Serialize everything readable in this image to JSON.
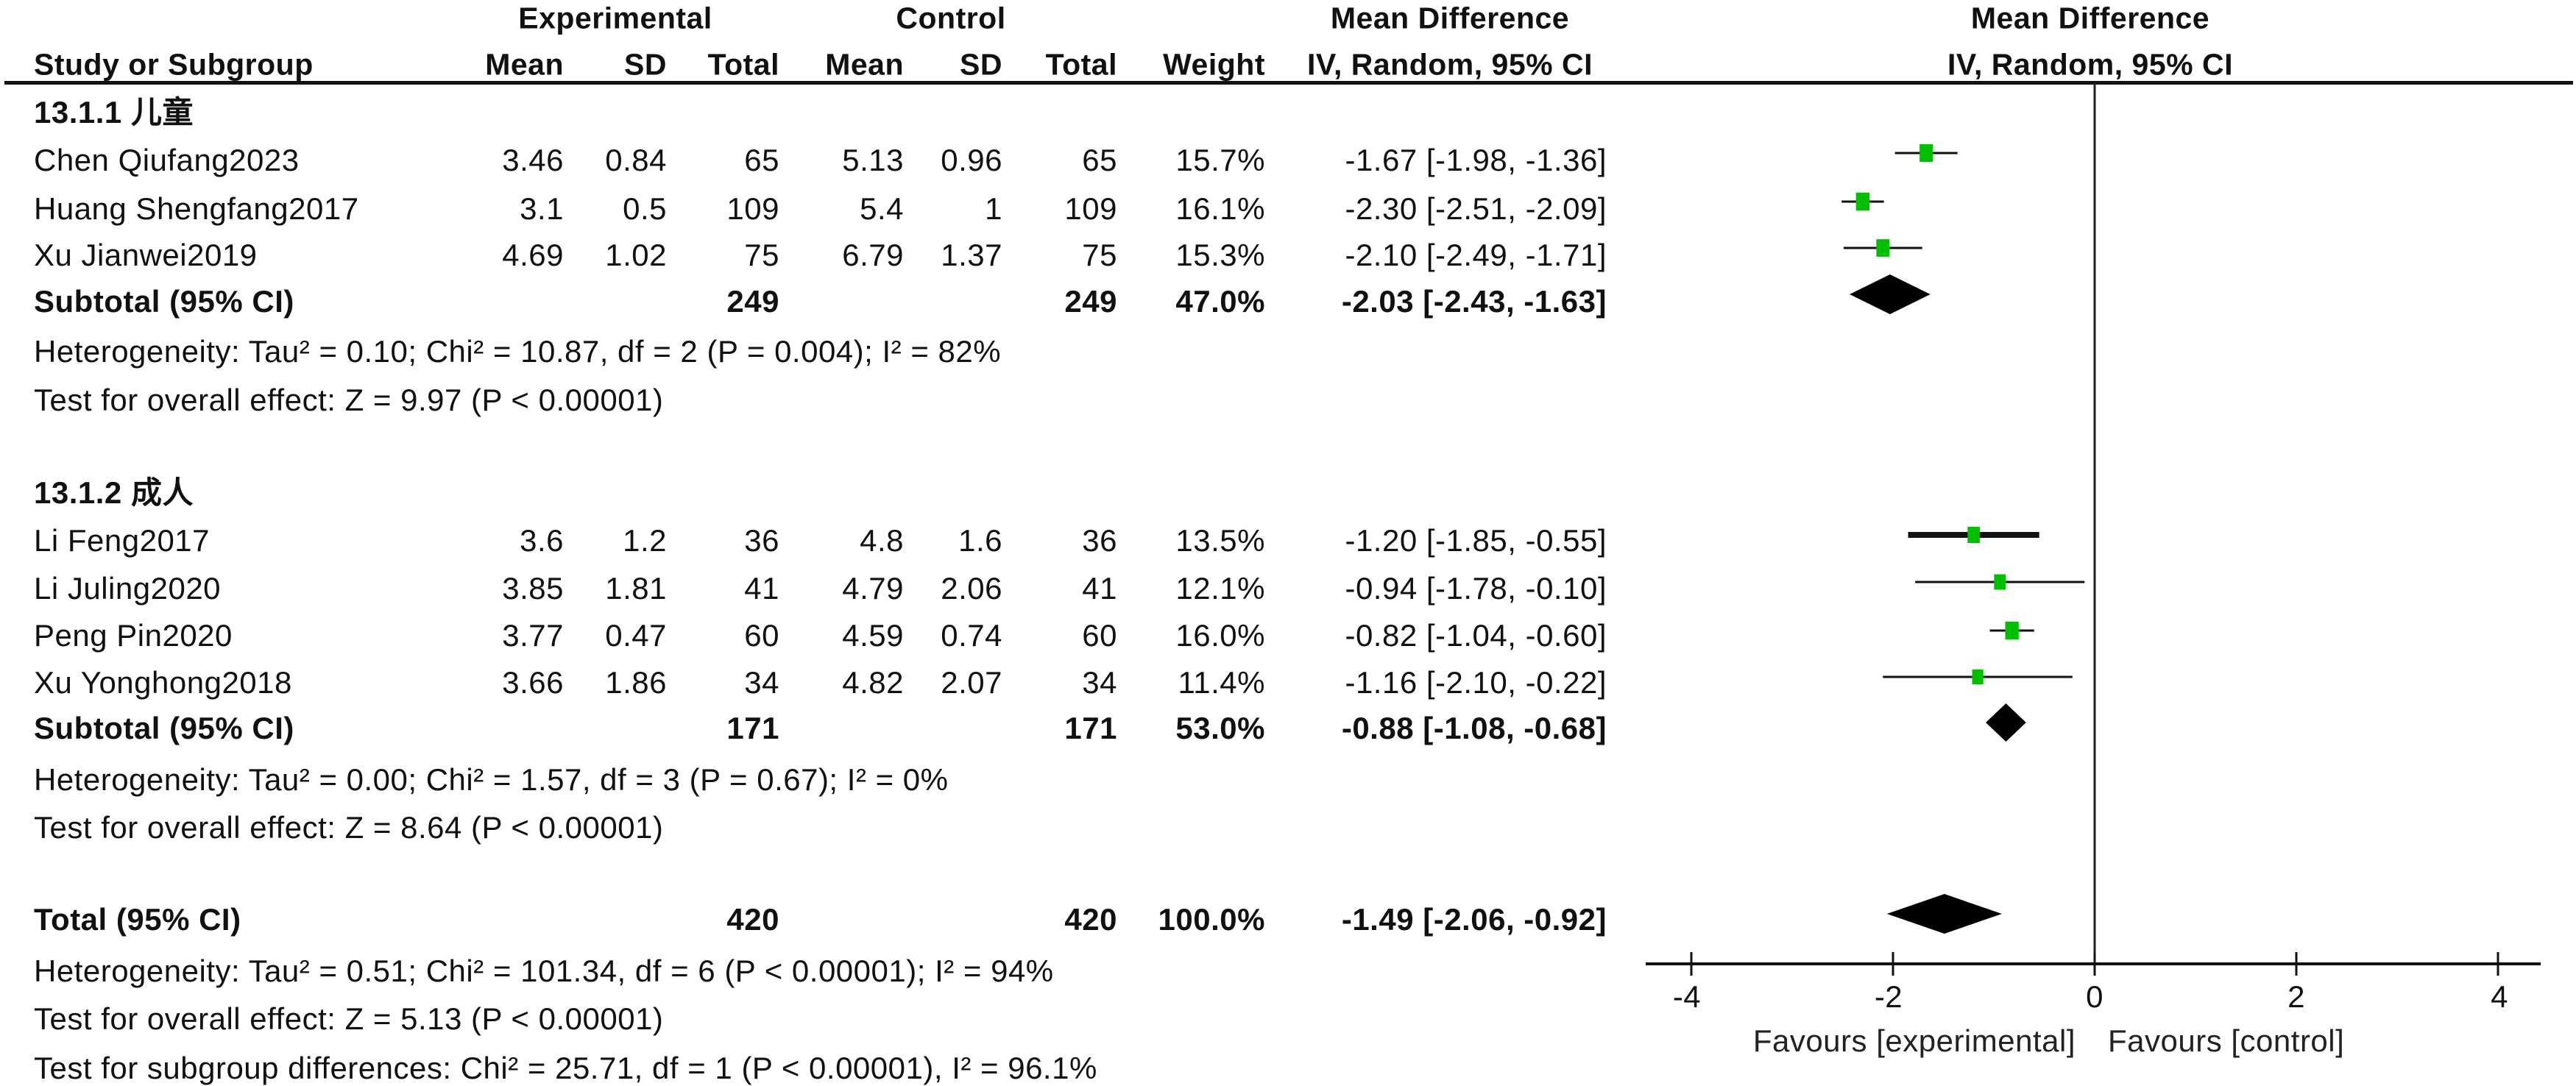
{
  "header": {
    "study_col": "Study or Subgroup",
    "experimental_group": "Experimental",
    "control_group": "Control",
    "mean": "Mean",
    "sd": "SD",
    "total": "Total",
    "weight": "Weight",
    "md_title": "Mean Difference",
    "md_method": "IV, Random, 95% CI",
    "plot_title": "Mean Difference",
    "plot_method": "IV, Random, 95% CI"
  },
  "subgroups": [
    {
      "label": "13.1.1 儿童",
      "studies": [
        {
          "name": "Chen Qiufang2023",
          "e_mean": "3.46",
          "e_sd": "0.84",
          "e_total": "65",
          "c_mean": "5.13",
          "c_sd": "0.96",
          "c_total": "65",
          "weight": "15.7%",
          "ci": "-1.67 [-1.98, -1.36]"
        },
        {
          "name": "Huang Shengfang2017",
          "e_mean": "3.1",
          "e_sd": "0.5",
          "e_total": "109",
          "c_mean": "5.4",
          "c_sd": "1",
          "c_total": "109",
          "weight": "16.1%",
          "ci": "-2.30 [-2.51, -2.09]"
        },
        {
          "name": "Xu Jianwei2019",
          "e_mean": "4.69",
          "e_sd": "1.02",
          "e_total": "75",
          "c_mean": "6.79",
          "c_sd": "1.37",
          "c_total": "75",
          "weight": "15.3%",
          "ci": "-2.10 [-2.49, -1.71]"
        }
      ],
      "subtotal": {
        "label": "Subtotal (95% CI)",
        "e_total": "249",
        "c_total": "249",
        "weight": "47.0%",
        "ci": "-2.03 [-2.43, -1.63]"
      },
      "heterogeneity": "Heterogeneity: Tau² = 0.10; Chi² = 10.87, df = 2 (P = 0.004); I² = 82%",
      "overall_effect": "Test for overall effect: Z = 9.97 (P < 0.00001)"
    },
    {
      "label": "13.1.2 成人",
      "studies": [
        {
          "name": "Li Feng2017",
          "e_mean": "3.6",
          "e_sd": "1.2",
          "e_total": "36",
          "c_mean": "4.8",
          "c_sd": "1.6",
          "c_total": "36",
          "weight": "13.5%",
          "ci": "-1.20 [-1.85, -0.55]"
        },
        {
          "name": "Li Juling2020",
          "e_mean": "3.85",
          "e_sd": "1.81",
          "e_total": "41",
          "c_mean": "4.79",
          "c_sd": "2.06",
          "c_total": "41",
          "weight": "12.1%",
          "ci": "-0.94 [-1.78, -0.10]"
        },
        {
          "name": "Peng Pin2020",
          "e_mean": "3.77",
          "e_sd": "0.47",
          "e_total": "60",
          "c_mean": "4.59",
          "c_sd": "0.74",
          "c_total": "60",
          "weight": "16.0%",
          "ci": "-0.82 [-1.04, -0.60]"
        },
        {
          "name": "Xu Yonghong2018",
          "e_mean": "3.66",
          "e_sd": "1.86",
          "e_total": "34",
          "c_mean": "4.82",
          "c_sd": "2.07",
          "c_total": "34",
          "weight": "11.4%",
          "ci": "-1.16 [-2.10, -0.22]"
        }
      ],
      "subtotal": {
        "label": "Subtotal (95% CI)",
        "e_total": "171",
        "c_total": "171",
        "weight": "53.0%",
        "ci": "-0.88 [-1.08, -0.68]"
      },
      "heterogeneity": "Heterogeneity: Tau² = 0.00; Chi² = 1.57, df = 3 (P = 0.67); I² = 0%",
      "overall_effect": "Test for overall effect: Z = 8.64 (P < 0.00001)"
    }
  ],
  "total": {
    "label": "Total (95% CI)",
    "e_total": "420",
    "c_total": "420",
    "weight": "100.0%",
    "ci": "-1.49 [-2.06, -0.92]",
    "heterogeneity": "Heterogeneity: Tau² = 0.51; Chi² = 101.34, df = 6 (P < 0.00001); I² = 94%",
    "overall_effect": "Test for overall effect: Z = 5.13 (P < 0.00001)",
    "subgroup_differences": "Test for subgroup differences: Chi² = 25.71, df = 1 (P < 0.00001), I² = 96.1%"
  },
  "axis": {
    "ticks": [
      "-4",
      "-2",
      "0",
      "2",
      "4"
    ],
    "favours_left": "Favours [experimental]",
    "favours_right": "Favours [control]"
  },
  "colors": {
    "marker": "#00c000",
    "line": "#111111",
    "diamond": "#000000"
  },
  "chart_data": {
    "type": "forest",
    "title": "Mean Difference IV, Random, 95% CI",
    "xlabel_left": "Favours [experimental]",
    "xlabel_right": "Favours [control]",
    "xlim": [
      -4,
      4
    ],
    "xticks": [
      -4,
      -2,
      0,
      2,
      4
    ],
    "studies": [
      {
        "name": "Chen Qiufang2023",
        "subgroup": "13.1.1 儿童",
        "md": -1.67,
        "lo": -1.98,
        "hi": -1.36,
        "weight": 15.7
      },
      {
        "name": "Huang Shengfang2017",
        "subgroup": "13.1.1 儿童",
        "md": -2.3,
        "lo": -2.51,
        "hi": -2.09,
        "weight": 16.1
      },
      {
        "name": "Xu Jianwei2019",
        "subgroup": "13.1.1 儿童",
        "md": -2.1,
        "lo": -2.49,
        "hi": -1.71,
        "weight": 15.3
      },
      {
        "name": "Li Feng2017",
        "subgroup": "13.1.2 成人",
        "md": -1.2,
        "lo": -1.85,
        "hi": -0.55,
        "weight": 13.5
      },
      {
        "name": "Li Juling2020",
        "subgroup": "13.1.2 成人",
        "md": -0.94,
        "lo": -1.78,
        "hi": -0.1,
        "weight": 12.1
      },
      {
        "name": "Peng Pin2020",
        "subgroup": "13.1.2 成人",
        "md": -0.82,
        "lo": -1.04,
        "hi": -0.6,
        "weight": 16.0
      },
      {
        "name": "Xu Yonghong2018",
        "subgroup": "13.1.2 成人",
        "md": -1.16,
        "lo": -2.1,
        "hi": -0.22,
        "weight": 11.4
      }
    ],
    "pooled": [
      {
        "name": "Subtotal 13.1.1",
        "md": -2.03,
        "lo": -2.43,
        "hi": -1.63,
        "weight": 47.0
      },
      {
        "name": "Subtotal 13.1.2",
        "md": -0.88,
        "lo": -1.08,
        "hi": -0.68,
        "weight": 53.0
      },
      {
        "name": "Total",
        "md": -1.49,
        "lo": -2.06,
        "hi": -0.92,
        "weight": 100.0
      }
    ]
  }
}
